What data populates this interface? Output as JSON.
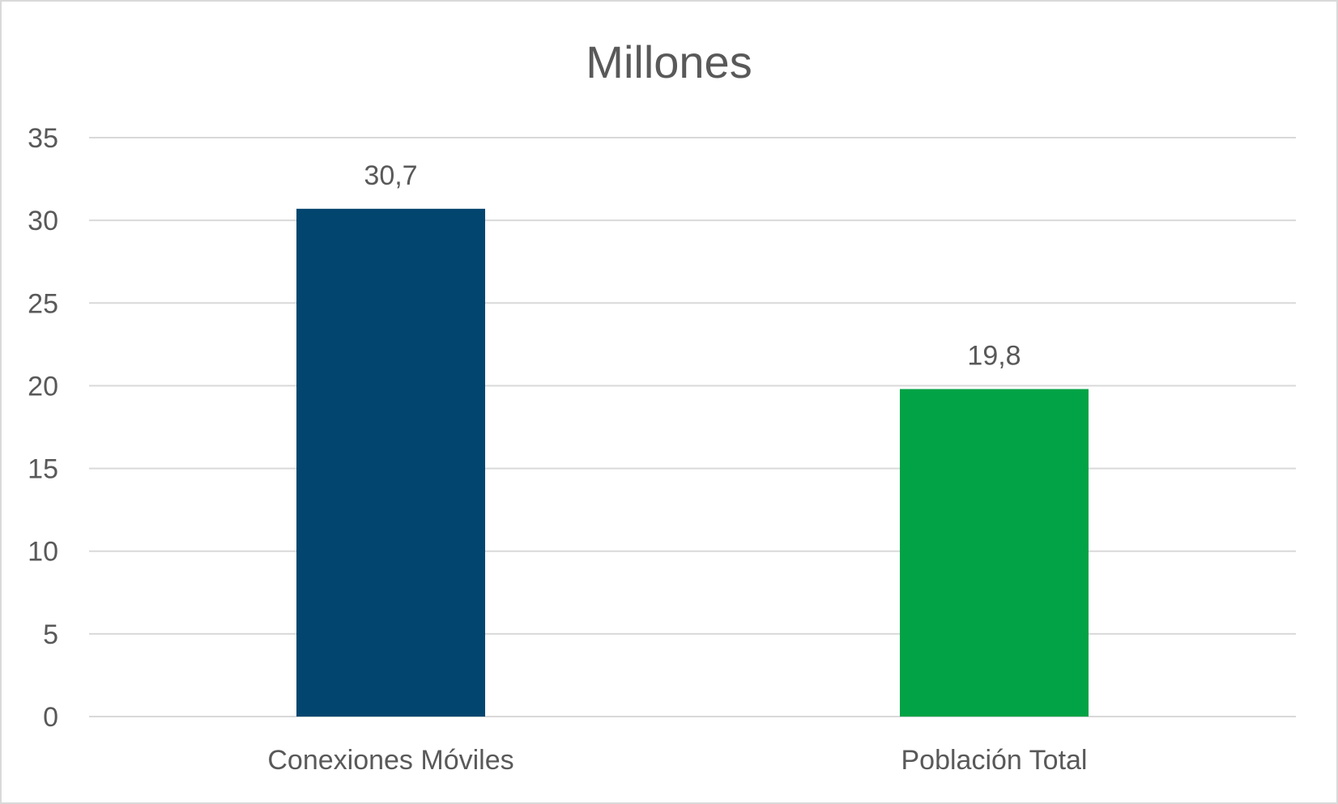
{
  "chart_data": {
    "type": "bar",
    "title": "Millones",
    "xlabel": "",
    "ylabel": "",
    "categories": [
      "Conexiones Móviles",
      "Población Total"
    ],
    "values": [
      30.7,
      19.8
    ],
    "value_labels": [
      "30,7",
      "19,8"
    ],
    "colors": [
      "#02466f",
      "#01a346"
    ],
    "ylim": [
      0,
      35
    ],
    "yticks": [
      0,
      5,
      10,
      15,
      20,
      25,
      30,
      35
    ],
    "grid": true,
    "legend": "none"
  }
}
